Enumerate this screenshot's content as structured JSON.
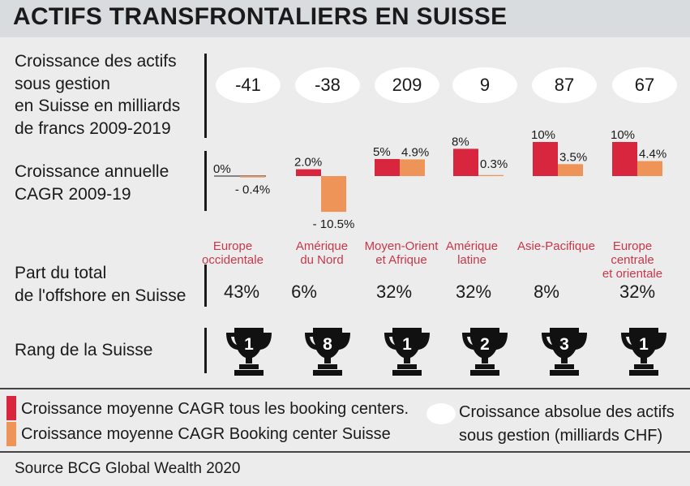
{
  "title": "ACTIFS TRANSFRONTALIERS EN SUISSE",
  "labels": {
    "growth": [
      "Croissance des actifs",
      "sous gestion",
      "en Suisse en milliards",
      "de francs 2009-2019"
    ],
    "cagr": [
      "Croissance annuelle",
      "CAGR 2009-19"
    ],
    "share": [
      "Part du total",
      "de l'offshore en Suisse"
    ],
    "rank": "Rang de la Suisse"
  },
  "regions": [
    {
      "name": [
        "Europe",
        "occidentale"
      ],
      "growth": "-41",
      "share": "43%",
      "rank": "1"
    },
    {
      "name": [
        "Amérique",
        "du Nord"
      ],
      "growth": "-38",
      "share": "6%",
      "rank": "8"
    },
    {
      "name": [
        "Moyen-Orient",
        "et Afrique"
      ],
      "growth": "209",
      "share": "32%",
      "rank": "1"
    },
    {
      "name": [
        "Amérique",
        "latine"
      ],
      "growth": "9",
      "share": "32%",
      "rank": "2"
    },
    {
      "name": [
        "Asie-Pacifique"
      ],
      "growth": "87",
      "share": "8%",
      "rank": "3"
    },
    {
      "name": [
        "Europe",
        "centrale",
        "et orientale"
      ],
      "growth": "67",
      "share": "32%",
      "rank": "1"
    }
  ],
  "chart_data": {
    "type": "bar",
    "categories": [
      "Europe occidentale",
      "Amérique du Nord",
      "Moyen-Orient et Afrique",
      "Amérique latine",
      "Asie-Pacifique",
      "Europe centrale et orientale"
    ],
    "series": [
      {
        "name": "Croissance moyenne CAGR tous les booking centers.",
        "values": [
          0,
          2.0,
          5,
          8,
          10,
          10
        ],
        "labels": [
          "0%",
          "2.0%",
          "5%",
          "8%",
          "10%",
          "10%"
        ],
        "color": "#d7263d"
      },
      {
        "name": "Croissance moyenne CAGR Booking center Suisse",
        "values": [
          -0.4,
          -10.5,
          4.9,
          0.3,
          3.5,
          4.4
        ],
        "labels": [
          "- 0.4%",
          "- 10.5%",
          "4.9%",
          "0.3%",
          "3.5%",
          "4.4%"
        ],
        "color": "#ee9459"
      }
    ]
  },
  "legend": {
    "red": "Croissance moyenne CAGR tous les booking centers.",
    "orange": "Croissance moyenne CAGR Booking center Suisse",
    "oval": [
      "Croissance absolue des actifs",
      "sous gestion (milliards CHF)"
    ]
  },
  "source": "Source BCG Global Wealth 2020",
  "colors": {
    "red": "#d7263d",
    "orange": "#ee9459",
    "region_text": "#c8374a"
  }
}
